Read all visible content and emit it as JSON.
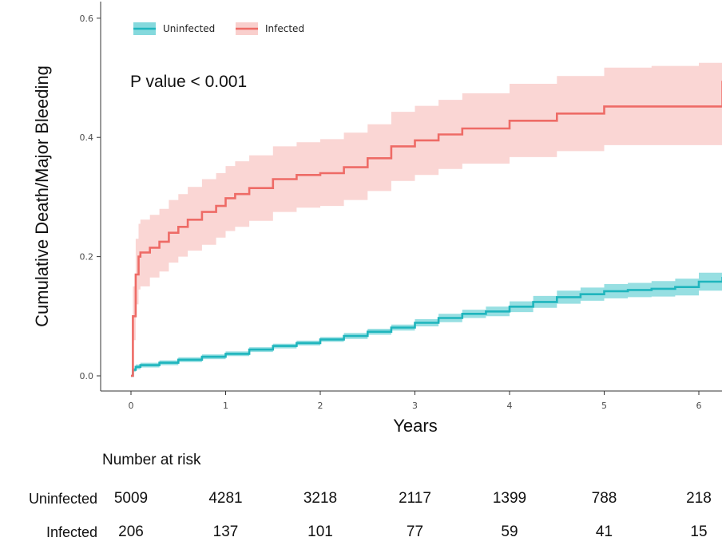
{
  "chart_data": {
    "type": "line",
    "subtype": "kaplan-meier cumulative incidence with confidence bands",
    "xlabel": "Years",
    "ylabel": "Cumulative Death/Major Bleeding",
    "xticks": [
      0,
      1,
      2,
      3,
      4,
      5,
      6
    ],
    "yticks": [
      "0.0",
      "0.2",
      "0.4",
      "0.6"
    ],
    "xlim": [
      -0.3,
      6.25
    ],
    "ylim": [
      -0.02,
      0.61
    ],
    "grid": false,
    "legend_position": "top-left",
    "annotation": "P value < 0.001",
    "series": [
      {
        "name": "Uninfected",
        "color": "#1fb5bd",
        "band_color": "#85d9dd",
        "x": [
          0,
          0.02,
          0.05,
          0.1,
          0.3,
          0.5,
          0.75,
          1,
          1.25,
          1.5,
          1.75,
          2,
          2.25,
          2.5,
          2.75,
          3,
          3.25,
          3.5,
          3.75,
          4,
          4.25,
          4.5,
          4.75,
          5,
          5.25,
          5.5,
          5.75,
          6,
          6.25
        ],
        "y": [
          0,
          0.01,
          0.015,
          0.018,
          0.022,
          0.027,
          0.032,
          0.037,
          0.044,
          0.05,
          0.055,
          0.061,
          0.067,
          0.074,
          0.081,
          0.089,
          0.097,
          0.104,
          0.108,
          0.116,
          0.124,
          0.132,
          0.137,
          0.142,
          0.144,
          0.146,
          0.149,
          0.158,
          0.166
        ],
        "lower": [
          0,
          0.007,
          0.011,
          0.014,
          0.018,
          0.023,
          0.028,
          0.033,
          0.04,
          0.046,
          0.051,
          0.057,
          0.062,
          0.069,
          0.076,
          0.083,
          0.09,
          0.097,
          0.1,
          0.107,
          0.114,
          0.121,
          0.126,
          0.13,
          0.132,
          0.133,
          0.135,
          0.143,
          0.15
        ],
        "upper": [
          0,
          0.013,
          0.019,
          0.022,
          0.026,
          0.031,
          0.036,
          0.041,
          0.048,
          0.054,
          0.059,
          0.065,
          0.072,
          0.079,
          0.086,
          0.095,
          0.104,
          0.111,
          0.116,
          0.125,
          0.134,
          0.143,
          0.148,
          0.154,
          0.156,
          0.159,
          0.163,
          0.173,
          0.183
        ]
      },
      {
        "name": "Infected",
        "color": "#ee6b66",
        "band_color": "#f9cfcd",
        "x": [
          0,
          0.02,
          0.05,
          0.08,
          0.1,
          0.2,
          0.3,
          0.4,
          0.5,
          0.6,
          0.75,
          0.9,
          1,
          1.1,
          1.25,
          1.5,
          1.75,
          2,
          2.25,
          2.5,
          2.75,
          3,
          3.25,
          3.5,
          4,
          4.5,
          5,
          5.5,
          6,
          6.25
        ],
        "y": [
          0,
          0.1,
          0.17,
          0.2,
          0.207,
          0.215,
          0.225,
          0.24,
          0.25,
          0.262,
          0.275,
          0.285,
          0.298,
          0.305,
          0.315,
          0.33,
          0.337,
          0.34,
          0.35,
          0.365,
          0.385,
          0.395,
          0.405,
          0.415,
          0.428,
          0.44,
          0.452,
          0.452,
          0.452,
          0.495
        ],
        "lower": [
          0,
          0.06,
          0.12,
          0.145,
          0.15,
          0.165,
          0.175,
          0.19,
          0.2,
          0.21,
          0.22,
          0.232,
          0.243,
          0.25,
          0.26,
          0.275,
          0.282,
          0.285,
          0.295,
          0.31,
          0.327,
          0.337,
          0.347,
          0.356,
          0.367,
          0.377,
          0.387,
          0.387,
          0.387,
          0.41
        ],
        "upper": [
          0,
          0.15,
          0.23,
          0.255,
          0.262,
          0.27,
          0.28,
          0.295,
          0.305,
          0.317,
          0.33,
          0.34,
          0.352,
          0.36,
          0.37,
          0.385,
          0.392,
          0.397,
          0.408,
          0.422,
          0.443,
          0.453,
          0.463,
          0.474,
          0.49,
          0.503,
          0.517,
          0.52,
          0.525,
          0.59
        ]
      }
    ],
    "risk_table": {
      "title": "Number at risk",
      "times": [
        0,
        1,
        2,
        3,
        4,
        5,
        6
      ],
      "rows": [
        {
          "label": "Uninfected",
          "values": [
            "5009",
            "4281",
            "3218",
            "2117",
            "1399",
            "788",
            "218"
          ]
        },
        {
          "label": "Infected",
          "values": [
            "206",
            "137",
            "101",
            "77",
            "59",
            "41",
            "15"
          ]
        }
      ]
    }
  }
}
